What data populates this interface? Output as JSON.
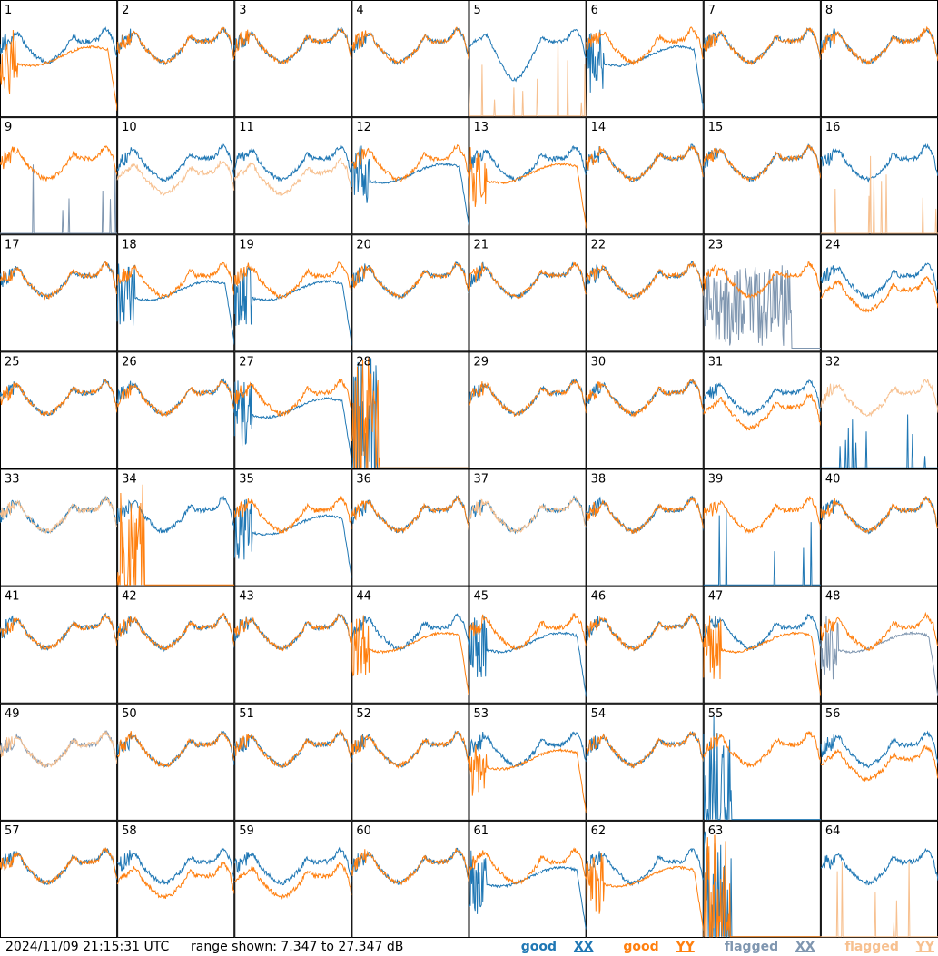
{
  "footer": {
    "timestamp": "2024/11/09 21:15:31 UTC",
    "range_text": "range shown: 7.347 to 27.347 dB"
  },
  "legend": [
    {
      "key": "good",
      "label": "good",
      "pol": "XX",
      "color": "#1f77b4"
    },
    {
      "key": "good",
      "label": "good",
      "pol": "YY",
      "color": "#ff7f0e"
    },
    {
      "key": "flagged",
      "label": "flagged",
      "pol": "XX",
      "color": "#7f96b0"
    },
    {
      "key": "flagged",
      "label": "flagged",
      "pol": "YY",
      "color": "#f7c08f"
    }
  ],
  "chart_data": {
    "type": "line",
    "grid_rows": 8,
    "grid_cols": 8,
    "y_range_db": [
      7.347,
      27.347
    ],
    "x": "frequency channel (unlabeled)",
    "legend_placement": "bottom-right",
    "tiles": [
      {
        "n": "1",
        "xx": "band",
        "yy": "drop_low",
        "fx": false,
        "fy": false
      },
      {
        "n": "2",
        "xx": "band",
        "yy": "band",
        "fx": false,
        "fy": false
      },
      {
        "n": "3",
        "xx": "band",
        "yy": "band",
        "fx": false,
        "fy": false
      },
      {
        "n": "4",
        "xx": "band",
        "yy": "band",
        "fx": false,
        "fy": false
      },
      {
        "n": "5",
        "xx": "band_dip",
        "yy": "spike",
        "fx": false,
        "fy": true
      },
      {
        "n": "6",
        "xx": "drop_low",
        "yy": "band",
        "fx": false,
        "fy": false
      },
      {
        "n": "7",
        "xx": "band",
        "yy": "band",
        "fx": false,
        "fy": false
      },
      {
        "n": "8",
        "xx": "band",
        "yy": "band",
        "fx": false,
        "fy": false
      },
      {
        "n": "9",
        "xx": "spike",
        "yy": "band",
        "fx": true,
        "fy": false
      },
      {
        "n": "10",
        "xx": "band",
        "yy": "band_low",
        "fx": false,
        "fy": true
      },
      {
        "n": "11",
        "xx": "band",
        "yy": "band_low",
        "fx": false,
        "fy": true
      },
      {
        "n": "12",
        "xx": "drop_low",
        "yy": "band",
        "fx": false,
        "fy": false
      },
      {
        "n": "13",
        "xx": "band",
        "yy": "drop_low",
        "fx": false,
        "fy": false
      },
      {
        "n": "14",
        "xx": "band",
        "yy": "band",
        "fx": false,
        "fy": false
      },
      {
        "n": "15",
        "xx": "band",
        "yy": "band",
        "fx": false,
        "fy": false
      },
      {
        "n": "16",
        "xx": "band",
        "yy": "spike",
        "fx": false,
        "fy": true
      },
      {
        "n": "17",
        "xx": "band",
        "yy": "band",
        "fx": false,
        "fy": false
      },
      {
        "n": "18",
        "xx": "drop_low",
        "yy": "band",
        "fx": false,
        "fy": false
      },
      {
        "n": "19",
        "xx": "drop_low",
        "yy": "band",
        "fx": false,
        "fy": false
      },
      {
        "n": "20",
        "xx": "band",
        "yy": "band",
        "fx": false,
        "fy": false
      },
      {
        "n": "21",
        "xx": "band",
        "yy": "band",
        "fx": false,
        "fy": false
      },
      {
        "n": "22",
        "xx": "band",
        "yy": "band",
        "fx": false,
        "fy": false
      },
      {
        "n": "23",
        "xx": "noise",
        "yy": "band",
        "fx": true,
        "fy": false
      },
      {
        "n": "24",
        "xx": "band",
        "yy": "band_low",
        "fx": false,
        "fy": false
      },
      {
        "n": "25",
        "xx": "band",
        "yy": "band",
        "fx": false,
        "fy": false
      },
      {
        "n": "26",
        "xx": "band",
        "yy": "band",
        "fx": false,
        "fy": false
      },
      {
        "n": "27",
        "xx": "drop_low",
        "yy": "band",
        "fx": false,
        "fy": false
      },
      {
        "n": "28",
        "xx": "dead",
        "yy": "dead",
        "fx": false,
        "fy": false
      },
      {
        "n": "29",
        "xx": "band",
        "yy": "band",
        "fx": false,
        "fy": false
      },
      {
        "n": "30",
        "xx": "band",
        "yy": "band",
        "fx": false,
        "fy": false
      },
      {
        "n": "31",
        "xx": "band",
        "yy": "band_low",
        "fx": false,
        "fy": false
      },
      {
        "n": "32",
        "xx": "spike",
        "yy": "band",
        "fx": false,
        "fy": true
      },
      {
        "n": "33",
        "xx": "band",
        "yy": "band",
        "fx": false,
        "fy": true
      },
      {
        "n": "34",
        "xx": "band",
        "yy": "dead",
        "fx": false,
        "fy": false
      },
      {
        "n": "35",
        "xx": "drop_low",
        "yy": "band",
        "fx": false,
        "fy": false
      },
      {
        "n": "36",
        "xx": "band",
        "yy": "band",
        "fx": false,
        "fy": false
      },
      {
        "n": "37",
        "xx": "band",
        "yy": "band",
        "fx": false,
        "fy": true
      },
      {
        "n": "38",
        "xx": "band",
        "yy": "band",
        "fx": false,
        "fy": false
      },
      {
        "n": "39",
        "xx": "spike",
        "yy": "band",
        "fx": false,
        "fy": false
      },
      {
        "n": "40",
        "xx": "band",
        "yy": "band",
        "fx": false,
        "fy": false
      },
      {
        "n": "41",
        "xx": "band",
        "yy": "band",
        "fx": false,
        "fy": false
      },
      {
        "n": "42",
        "xx": "band",
        "yy": "band",
        "fx": false,
        "fy": false
      },
      {
        "n": "43",
        "xx": "band",
        "yy": "band",
        "fx": false,
        "fy": false
      },
      {
        "n": "44",
        "xx": "band",
        "yy": "drop_low",
        "fx": false,
        "fy": false
      },
      {
        "n": "45",
        "xx": "drop_low",
        "yy": "band",
        "fx": false,
        "fy": false
      },
      {
        "n": "46",
        "xx": "band",
        "yy": "band",
        "fx": false,
        "fy": false
      },
      {
        "n": "47",
        "xx": "band",
        "yy": "drop_low",
        "fx": false,
        "fy": false
      },
      {
        "n": "48",
        "xx": "drop_low",
        "yy": "band",
        "fx": true,
        "fy": false
      },
      {
        "n": "49",
        "xx": "band",
        "yy": "band",
        "fx": true,
        "fy": true
      },
      {
        "n": "50",
        "xx": "band",
        "yy": "band",
        "fx": false,
        "fy": false
      },
      {
        "n": "51",
        "xx": "band",
        "yy": "band",
        "fx": false,
        "fy": false
      },
      {
        "n": "52",
        "xx": "band",
        "yy": "band",
        "fx": false,
        "fy": false
      },
      {
        "n": "53",
        "xx": "band",
        "yy": "drop_low",
        "fx": false,
        "fy": false
      },
      {
        "n": "54",
        "xx": "band",
        "yy": "band",
        "fx": false,
        "fy": false
      },
      {
        "n": "55",
        "xx": "dead",
        "yy": "band",
        "fx": false,
        "fy": false
      },
      {
        "n": "56",
        "xx": "band",
        "yy": "band_low",
        "fx": false,
        "fy": false
      },
      {
        "n": "57",
        "xx": "band",
        "yy": "band",
        "fx": false,
        "fy": false
      },
      {
        "n": "58",
        "xx": "band",
        "yy": "band_low",
        "fx": false,
        "fy": false
      },
      {
        "n": "59",
        "xx": "band",
        "yy": "band_low",
        "fx": false,
        "fy": false
      },
      {
        "n": "60",
        "xx": "band",
        "yy": "band",
        "fx": false,
        "fy": false
      },
      {
        "n": "61",
        "xx": "drop_low",
        "yy": "band",
        "fx": false,
        "fy": false
      },
      {
        "n": "62",
        "xx": "band",
        "yy": "drop_low",
        "fx": false,
        "fy": false
      },
      {
        "n": "63",
        "xx": "dead",
        "yy": "dead",
        "fx": false,
        "fy": false
      },
      {
        "n": "64",
        "xx": "band",
        "yy": "spike",
        "fx": false,
        "fy": true
      }
    ]
  }
}
